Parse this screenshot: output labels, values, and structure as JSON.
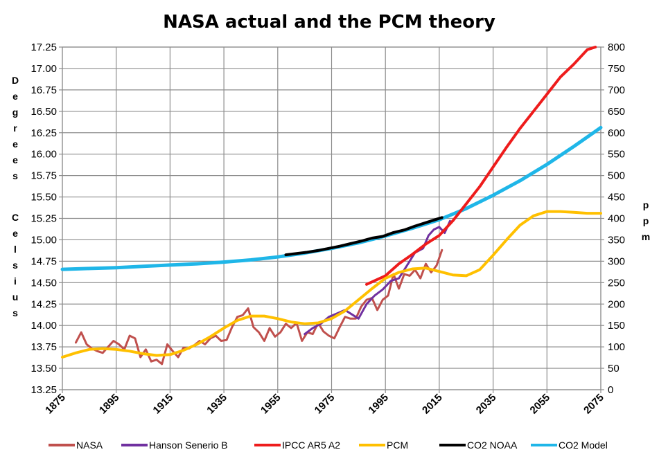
{
  "chart_data": {
    "type": "line",
    "title": "NASA actual and the PCM theory",
    "ylabel_left": [
      "D",
      "e",
      "g",
      "r",
      "e",
      "e",
      "s",
      "C",
      "e",
      "l",
      "s",
      "i",
      "u",
      "s"
    ],
    "ylabel_right": [
      "p",
      "p",
      "m"
    ],
    "x_ticks": [
      "1875",
      "1895",
      "1915",
      "1935",
      "1955",
      "1975",
      "1995",
      "2015",
      "2035",
      "2055",
      "2075"
    ],
    "xlim": [
      1875,
      2075
    ],
    "y_left_ticks": [
      "13.25",
      "13.50",
      "13.75",
      "14.00",
      "14.25",
      "14.50",
      "14.75",
      "15.00",
      "15.25",
      "15.50",
      "15.75",
      "16.00",
      "16.25",
      "16.50",
      "16.75",
      "17.00",
      "17.25"
    ],
    "ylim_left": [
      13.25,
      17.25
    ],
    "y_right_ticks": [
      "0",
      "50",
      "100",
      "150",
      "200",
      "250",
      "300",
      "350",
      "400",
      "450",
      "500",
      "550",
      "600",
      "650",
      "700",
      "750",
      "800"
    ],
    "ylim_right": [
      0,
      800
    ],
    "grid": true,
    "legend_position": "bottom",
    "series": [
      {
        "name": "NASA",
        "axis": "left",
        "color": "#c0504d",
        "x": [
          1880,
          1882,
          1884,
          1886,
          1888,
          1890,
          1892,
          1894,
          1896,
          1898,
          1900,
          1902,
          1904,
          1906,
          1908,
          1910,
          1912,
          1914,
          1916,
          1918,
          1920,
          1922,
          1924,
          1926,
          1928,
          1930,
          1932,
          1934,
          1936,
          1938,
          1940,
          1942,
          1944,
          1946,
          1948,
          1950,
          1952,
          1954,
          1956,
          1958,
          1960,
          1962,
          1964,
          1966,
          1968,
          1970,
          1972,
          1974,
          1976,
          1978,
          1980,
          1982,
          1984,
          1986,
          1988,
          1990,
          1992,
          1994,
          1996,
          1998,
          2000,
          2002,
          2004,
          2006,
          2008,
          2010,
          2012,
          2014,
          2016
        ],
        "values": [
          13.8,
          13.92,
          13.78,
          13.73,
          13.7,
          13.68,
          13.75,
          13.82,
          13.78,
          13.72,
          13.88,
          13.85,
          13.63,
          13.72,
          13.58,
          13.6,
          13.55,
          13.78,
          13.7,
          13.63,
          13.74,
          13.73,
          13.77,
          13.82,
          13.78,
          13.85,
          13.88,
          13.82,
          13.83,
          13.98,
          14.1,
          14.12,
          14.2,
          13.98,
          13.92,
          13.82,
          13.97,
          13.87,
          13.92,
          14.02,
          13.97,
          14.03,
          13.82,
          13.92,
          13.9,
          14.03,
          13.93,
          13.88,
          13.85,
          13.98,
          14.1,
          14.08,
          14.08,
          14.22,
          14.3,
          14.32,
          14.18,
          14.3,
          14.35,
          14.6,
          14.43,
          14.6,
          14.58,
          14.65,
          14.55,
          14.72,
          14.62,
          14.7,
          14.88
        ]
      },
      {
        "name": "Hanson Senerio B",
        "axis": "left",
        "color": "#7030a0",
        "x": [
          1965,
          1968,
          1971,
          1974,
          1977,
          1980,
          1983,
          1985,
          1988,
          1991,
          1994,
          1997,
          2000,
          2003,
          2006,
          2009,
          2011,
          2013,
          2015,
          2017,
          2019
        ],
        "values": [
          13.9,
          13.97,
          14.02,
          14.1,
          14.14,
          14.18,
          14.12,
          14.08,
          14.25,
          14.35,
          14.42,
          14.52,
          14.55,
          14.7,
          14.85,
          14.9,
          15.05,
          15.12,
          15.15,
          15.08,
          15.22
        ]
      },
      {
        "name": "IPCC AR5 A2",
        "axis": "left",
        "color": "#ee1c1c",
        "x": [
          1988,
          1995,
          2000,
          2005,
          2010,
          2015,
          2020,
          2025,
          2030,
          2035,
          2040,
          2045,
          2050,
          2055,
          2060,
          2065,
          2070,
          2073
        ],
        "values": [
          14.48,
          14.58,
          14.72,
          14.83,
          14.95,
          15.05,
          15.22,
          15.42,
          15.62,
          15.85,
          16.08,
          16.3,
          16.5,
          16.7,
          16.9,
          17.05,
          17.22,
          17.25
        ]
      },
      {
        "name": "PCM",
        "axis": "left",
        "color": "#ffc000",
        "x": [
          1875,
          1880,
          1885,
          1890,
          1895,
          1900,
          1905,
          1910,
          1915,
          1920,
          1925,
          1930,
          1935,
          1940,
          1945,
          1950,
          1955,
          1960,
          1965,
          1970,
          1975,
          1980,
          1985,
          1990,
          1995,
          2000,
          2005,
          2010,
          2015,
          2020,
          2025,
          2030,
          2035,
          2040,
          2045,
          2050,
          2055,
          2060,
          2065,
          2070,
          2075
        ],
        "values": [
          13.63,
          13.68,
          13.72,
          13.73,
          13.72,
          13.7,
          13.67,
          13.65,
          13.66,
          13.71,
          13.78,
          13.87,
          13.97,
          14.06,
          14.11,
          14.11,
          14.08,
          14.04,
          14.02,
          14.03,
          14.08,
          14.17,
          14.3,
          14.43,
          14.55,
          14.62,
          14.66,
          14.67,
          14.63,
          14.59,
          14.58,
          14.65,
          14.82,
          15.0,
          15.17,
          15.28,
          15.33,
          15.33,
          15.32,
          15.31,
          15.31
        ]
      },
      {
        "name": "CO2 NOAA",
        "axis": "right",
        "color": "#000000",
        "x": [
          1958,
          1962,
          1966,
          1970,
          1974,
          1978,
          1982,
          1986,
          1990,
          1994,
          1998,
          2002,
          2006,
          2010,
          2014,
          2016
        ],
        "values": [
          315,
          318,
          321,
          325,
          330,
          335,
          341,
          347,
          354,
          358,
          367,
          373,
          382,
          390,
          398,
          402
        ]
      },
      {
        "name": "CO2 Model",
        "axis": "right",
        "color": "#1fb6e8",
        "x": [
          1875,
          1885,
          1895,
          1905,
          1915,
          1925,
          1935,
          1945,
          1955,
          1965,
          1975,
          1985,
          1995,
          2005,
          2015,
          2025,
          2035,
          2045,
          2055,
          2065,
          2075
        ],
        "values": [
          281,
          283,
          285,
          288,
          291,
          294,
          298,
          303,
          310,
          319,
          330,
          343,
          359,
          377,
          397,
          423,
          454,
          488,
          526,
          568,
          612
        ]
      }
    ]
  }
}
